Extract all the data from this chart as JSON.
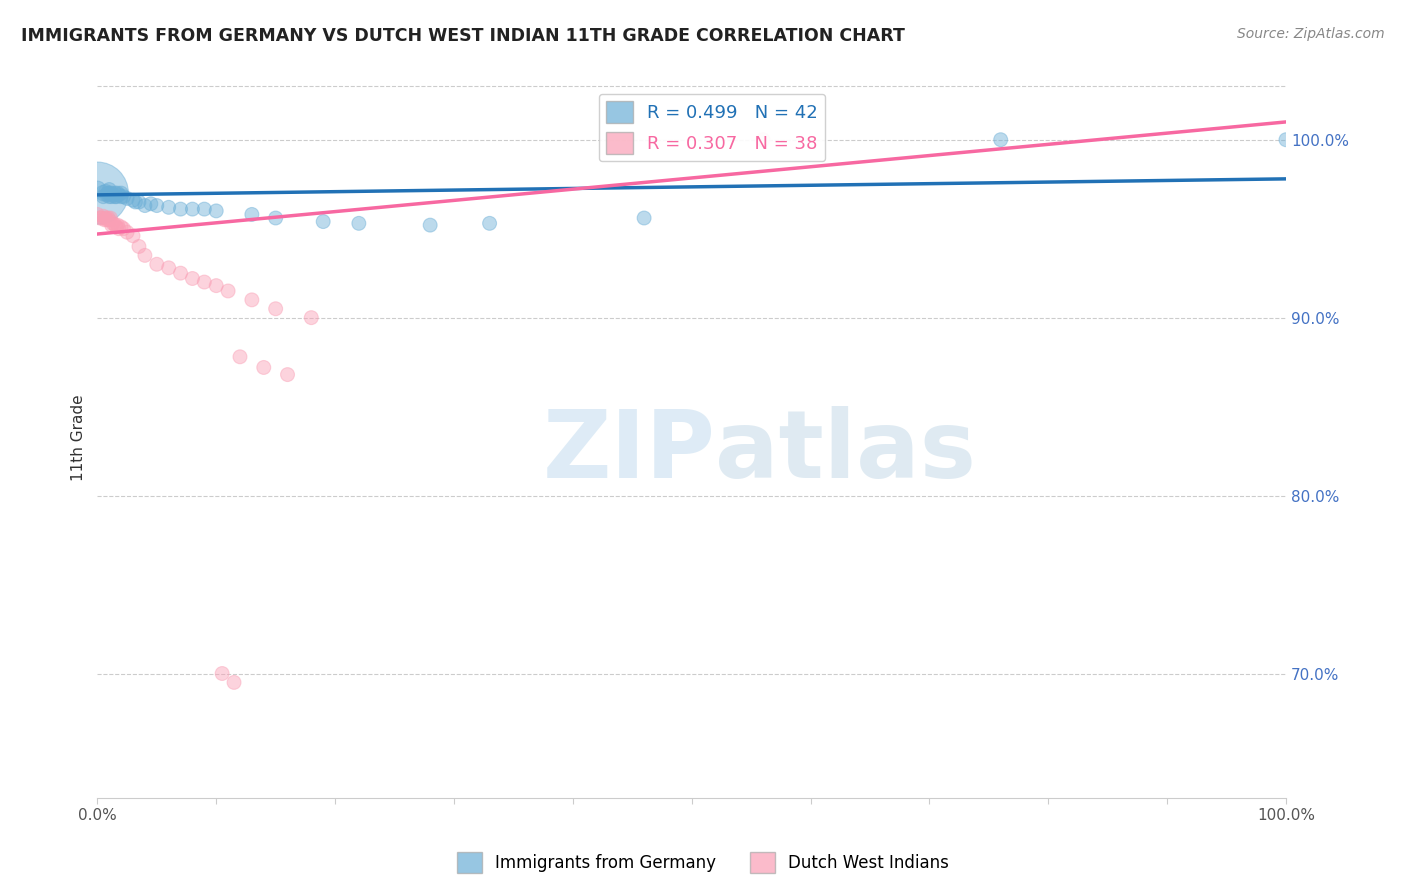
{
  "title": "IMMIGRANTS FROM GERMANY VS DUTCH WEST INDIAN 11TH GRADE CORRELATION CHART",
  "source": "Source: ZipAtlas.com",
  "ylabel": "11th Grade",
  "xlim": [
    0.0,
    1.0
  ],
  "ylim": [
    0.63,
    1.035
  ],
  "x_ticks": [
    0.0,
    0.1,
    0.2,
    0.3,
    0.4,
    0.5,
    0.6,
    0.7,
    0.8,
    0.9,
    1.0
  ],
  "x_tick_labels": [
    "0.0%",
    "",
    "",
    "",
    "",
    "",
    "",
    "",
    "",
    "",
    "100.0%"
  ],
  "y_ticks": [
    0.7,
    0.8,
    0.9,
    1.0
  ],
  "y_tick_labels": [
    "70.0%",
    "80.0%",
    "90.0%",
    "100.0%"
  ],
  "legend_label1": "Immigrants from Germany",
  "legend_label2": "Dutch West Indians",
  "r1": 0.499,
  "n1": 42,
  "r2": 0.307,
  "n2": 38,
  "blue_color": "#6baed6",
  "pink_color": "#fa9fb5",
  "blue_line_color": "#2171b5",
  "pink_line_color": "#f768a1",
  "watermark_zip": "ZIP",
  "watermark_atlas": "atlas",
  "blue_scatter_x": [
    0.0,
    0.0,
    0.005,
    0.005,
    0.007,
    0.008,
    0.009,
    0.01,
    0.01,
    0.01,
    0.012,
    0.012,
    0.013,
    0.015,
    0.015,
    0.016,
    0.017,
    0.018,
    0.02,
    0.02,
    0.022,
    0.025,
    0.03,
    0.032,
    0.035,
    0.04,
    0.045,
    0.05,
    0.06,
    0.07,
    0.08,
    0.09,
    0.1,
    0.13,
    0.15,
    0.19,
    0.22,
    0.28,
    0.33,
    0.46,
    0.76,
    1.0
  ],
  "blue_scatter_y": [
    0.97,
    0.972,
    0.97,
    0.968,
    0.971,
    0.969,
    0.97,
    0.968,
    0.97,
    0.972,
    0.968,
    0.97,
    0.969,
    0.968,
    0.97,
    0.968,
    0.97,
    0.969,
    0.968,
    0.97,
    0.968,
    0.967,
    0.966,
    0.965,
    0.965,
    0.963,
    0.964,
    0.963,
    0.962,
    0.961,
    0.961,
    0.961,
    0.96,
    0.958,
    0.956,
    0.954,
    0.953,
    0.952,
    0.953,
    0.956,
    1.0,
    1.0
  ],
  "blue_scatter_s": [
    400,
    30,
    25,
    20,
    20,
    20,
    20,
    20,
    20,
    20,
    20,
    20,
    20,
    20,
    20,
    20,
    20,
    20,
    20,
    20,
    20,
    20,
    20,
    20,
    20,
    20,
    20,
    20,
    20,
    20,
    20,
    20,
    20,
    20,
    20,
    20,
    20,
    20,
    20,
    20,
    20,
    20
  ],
  "pink_scatter_x": [
    0.0,
    0.002,
    0.004,
    0.005,
    0.006,
    0.007,
    0.008,
    0.009,
    0.01,
    0.011,
    0.012,
    0.013,
    0.015,
    0.016,
    0.017,
    0.018,
    0.02,
    0.022,
    0.025,
    0.03,
    0.035,
    0.04,
    0.05,
    0.06,
    0.07,
    0.08,
    0.09,
    0.1,
    0.11,
    0.13,
    0.15,
    0.18,
    0.56,
    0.12,
    0.14,
    0.16,
    0.105,
    0.115
  ],
  "pink_scatter_y": [
    0.958,
    0.956,
    0.956,
    0.957,
    0.955,
    0.956,
    0.955,
    0.956,
    0.955,
    0.956,
    0.952,
    0.953,
    0.952,
    0.951,
    0.952,
    0.95,
    0.951,
    0.95,
    0.948,
    0.946,
    0.94,
    0.935,
    0.93,
    0.928,
    0.925,
    0.922,
    0.92,
    0.918,
    0.915,
    0.91,
    0.905,
    0.9,
    1.0,
    0.878,
    0.872,
    0.868,
    0.7,
    0.695
  ],
  "pink_scatter_s": [
    20,
    20,
    20,
    20,
    20,
    20,
    20,
    20,
    20,
    20,
    20,
    20,
    20,
    20,
    20,
    20,
    20,
    20,
    20,
    20,
    20,
    20,
    20,
    20,
    20,
    20,
    20,
    20,
    20,
    20,
    20,
    20,
    20,
    20,
    20,
    20,
    20,
    20
  ],
  "blue_line_x": [
    0.0,
    1.0
  ],
  "blue_line_y": [
    0.969,
    0.978
  ],
  "pink_line_x": [
    0.0,
    1.0
  ],
  "pink_line_y": [
    0.947,
    1.01
  ]
}
